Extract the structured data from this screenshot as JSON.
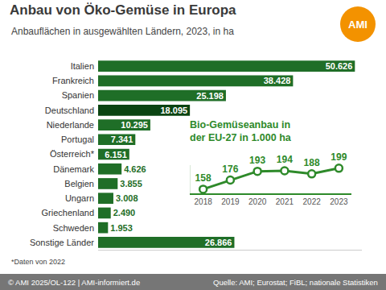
{
  "chart_data": [
    {
      "type": "bar",
      "title": "Anbau von Öko-Gemüse in Europa",
      "subtitle": "Anbauflächen in ausgewählten Ländern, 2023, in ha",
      "categories": [
        "Italien",
        "Frankreich",
        "Spanien",
        "Deutschland",
        "Niederlande",
        "Portugal",
        "Österreich*",
        "Dänemark",
        "Belgien",
        "Ungarn",
        "Griechenland",
        "Schweden",
        "Sonstige Länder"
      ],
      "values": [
        50626,
        38428,
        25198,
        18095,
        10295,
        7341,
        6151,
        4626,
        3855,
        3008,
        2490,
        1953,
        26866
      ],
      "value_labels": [
        "50.626",
        "38.428",
        "25.198",
        "18.095",
        "10.295",
        "7.341",
        "6.151",
        "4.626",
        "3.855",
        "3.008",
        "2.490",
        "1.953",
        "26.866"
      ],
      "colors": [
        "#1f6e27",
        "#1f6e27",
        "#1f6e27",
        "#0b4412",
        "#1f6e27",
        "#1f6e27",
        "#1f6e27",
        "#1f6e27",
        "#1f6e27",
        "#1f6e27",
        "#1f6e27",
        "#1f6e27",
        "#1f6e27"
      ],
      "orientation": "horizontal",
      "data_labels": true,
      "tick_labels": "y",
      "grid": false,
      "xlim": [
        0,
        52000
      ],
      "xticks": [],
      "note": "*Daten von 2022",
      "logo": "AMI",
      "credit": "© AMI 2025/OL-122 | AMI-informiert.de",
      "source": "Quelle: AMI; Eurostat; FiBL; nationale Statistiken"
    },
    {
      "type": "line",
      "title": "Bio-Gemüseanbau in\nder EU-27 in 1.000 ha",
      "categories": [
        "2018",
        "2019",
        "2020",
        "2021",
        "2022",
        "2023"
      ],
      "values": [
        158,
        176,
        193,
        194,
        188,
        199
      ],
      "color": "#2e8a2a",
      "marker": "circle",
      "data_labels": true,
      "tick_labels": "x",
      "grid": false,
      "ylim": [
        150,
        205
      ],
      "yticks": []
    }
  ]
}
